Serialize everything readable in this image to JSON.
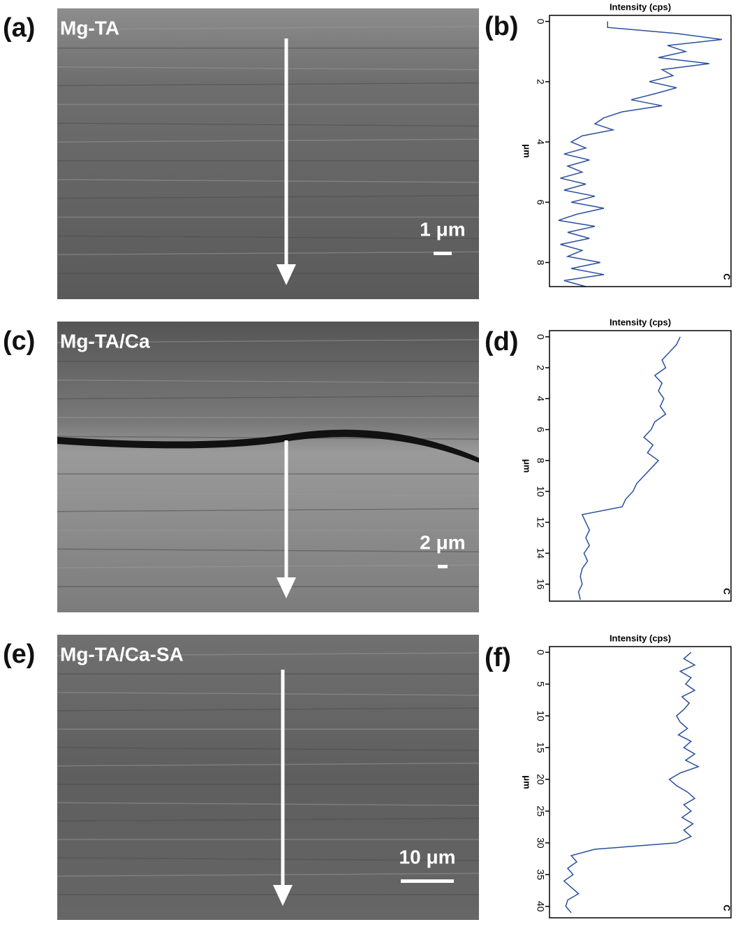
{
  "panels": [
    {
      "label": "(a)",
      "name": "Mg-TA",
      "scale": "1 μm"
    },
    {
      "label": "(c)",
      "name": "Mg-TA/Ca",
      "scale": "2 μm"
    },
    {
      "label": "(e)",
      "name": "Mg-TA/Ca-SA",
      "scale": "10 μm"
    }
  ],
  "chart_data": [
    {
      "type": "line",
      "panel_label": "(b)",
      "title": "Intensity (cps)",
      "x_label": "μm",
      "annotation": "C",
      "color": "#2a4f9c",
      "xlim": [
        -0.2,
        8.8
      ],
      "xticks": [
        0,
        2,
        4,
        6,
        8
      ],
      "ylim": [
        0,
        100
      ],
      "x": [
        0,
        0.2,
        0.4,
        0.6,
        0.8,
        1.0,
        1.2,
        1.4,
        1.6,
        1.8,
        2.0,
        2.2,
        2.4,
        2.6,
        2.8,
        3.0,
        3.2,
        3.4,
        3.6,
        3.8,
        4.0,
        4.2,
        4.4,
        4.6,
        4.8,
        5.0,
        5.2,
        5.4,
        5.6,
        5.8,
        6.0,
        6.2,
        6.4,
        6.6,
        6.8,
        7.0,
        7.2,
        7.4,
        7.6,
        7.8,
        8.0,
        8.2,
        8.4,
        8.6,
        8.8
      ],
      "values": [
        32,
        32,
        70,
        95,
        65,
        75,
        60,
        88,
        62,
        68,
        55,
        70,
        58,
        45,
        62,
        40,
        30,
        25,
        35,
        18,
        12,
        20,
        8,
        22,
        10,
        18,
        6,
        20,
        8,
        25,
        12,
        30,
        15,
        5,
        25,
        10,
        22,
        6,
        18,
        10,
        28,
        12,
        30,
        8,
        20
      ]
    },
    {
      "type": "line",
      "panel_label": "(d)",
      "title": "Intensity (cps)",
      "x_label": "μm",
      "annotation": "C",
      "color": "#2a4f9c",
      "xlim": [
        -0.4,
        17.1
      ],
      "xticks": [
        0,
        2,
        4,
        6,
        8,
        10,
        12,
        14,
        16
      ],
      "ylim": [
        0,
        100
      ],
      "x": [
        0,
        0.5,
        1,
        1.5,
        2,
        2.5,
        3,
        3.5,
        4,
        4.5,
        5,
        5.5,
        6,
        6.5,
        7,
        7.5,
        8,
        8.5,
        9,
        9.5,
        10,
        10.5,
        11,
        11.5,
        12,
        12.5,
        13,
        13.5,
        14,
        14.5,
        15,
        15.5,
        16,
        16.5,
        17
      ],
      "values": [
        72,
        70,
        66,
        62,
        64,
        58,
        62,
        60,
        63,
        61,
        64,
        58,
        56,
        52,
        57,
        54,
        60,
        56,
        52,
        48,
        46,
        42,
        40,
        18,
        20,
        22,
        20,
        22,
        19,
        21,
        18,
        17,
        18,
        16,
        17
      ]
    },
    {
      "type": "line",
      "panel_label": "(f)",
      "title": "Intensity (cps)",
      "x_label": "μm",
      "annotation": "C",
      "color": "#2a4f9c",
      "xlim": [
        -0.9,
        41.8
      ],
      "xticks": [
        0,
        5,
        10,
        15,
        20,
        25,
        30,
        35,
        40
      ],
      "ylim": [
        0,
        100
      ],
      "x": [
        0,
        1,
        2,
        3,
        4,
        5,
        6,
        7,
        8,
        9,
        10,
        11,
        12,
        13,
        14,
        15,
        16,
        17,
        18,
        19,
        20,
        21,
        22,
        23,
        24,
        25,
        26,
        27,
        28,
        29,
        30,
        31,
        32,
        33,
        34,
        35,
        36,
        37,
        38,
        39,
        40,
        41
      ],
      "values": [
        78,
        74,
        80,
        72,
        78,
        75,
        80,
        73,
        77,
        74,
        70,
        72,
        76,
        71,
        78,
        74,
        80,
        75,
        82,
        72,
        66,
        70,
        76,
        80,
        74,
        78,
        73,
        79,
        74,
        78,
        70,
        25,
        12,
        15,
        10,
        13,
        8,
        12,
        16,
        10,
        9,
        12
      ]
    }
  ]
}
